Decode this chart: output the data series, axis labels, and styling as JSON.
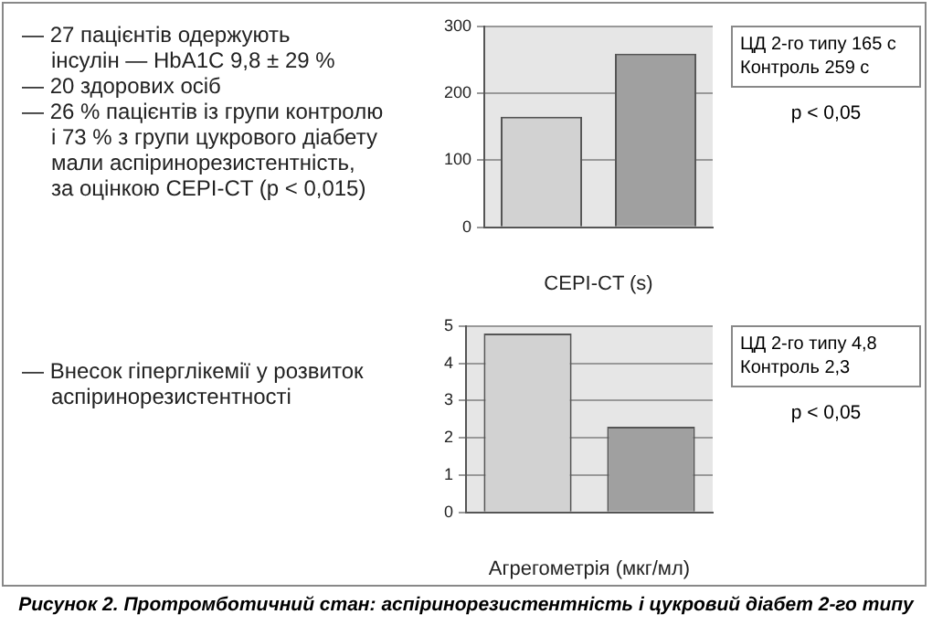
{
  "chart_data": [
    {
      "type": "bar",
      "xlabel": "CEPI-CT (s)",
      "categories": [
        null,
        null
      ],
      "values": [
        165,
        259
      ],
      "colors": [
        "#d2d2d2",
        "#a0a0a0"
      ],
      "ylim": [
        0,
        300
      ],
      "yticks": [
        0,
        100,
        200,
        300
      ],
      "grid": "y",
      "annotations": [
        "— 27 пацієнтів одержують\nінсулін — HbA1C 9,8 ± 29 %",
        "— 20 здорових осіб",
        "— 26 % пацієнтів із групи контролю\nі 73 % з групи цукрового діабету\nмали аспіринорезистентність,\nза оцінкою CEPI-CT (p < 0,015)",
        "ЦД 2-го типу 165 с\nКонтроль 259 с",
        "p < 0,05"
      ]
    },
    {
      "type": "bar",
      "xlabel": "Агрегометрія (мкг/мл)",
      "categories": [
        null,
        null
      ],
      "values": [
        4.8,
        2.3
      ],
      "colors": [
        "#d2d2d2",
        "#a0a0a0"
      ],
      "ylim": [
        0,
        5
      ],
      "yticks": [
        0,
        1,
        2,
        3,
        4,
        5
      ],
      "grid": "y",
      "annotations": [
        "— Внесок гіперглікемії у розвиток\nаспіринорезистентності",
        "ЦД 2-го типу 4,8\nКонтроль 2,3",
        "p < 0,05",
        "Рисунок 2. Протромботичний стан: аспіринорезистентність і цукровий діабет 2-го типу"
      ]
    }
  ]
}
